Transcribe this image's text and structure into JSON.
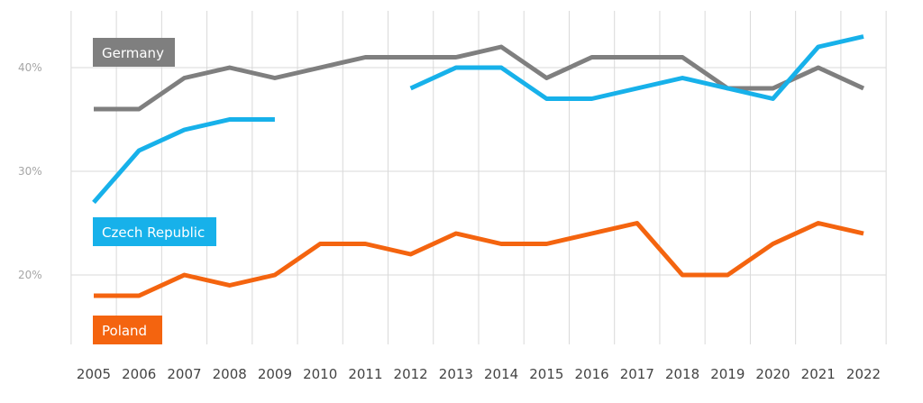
{
  "chart_data": {
    "type": "line",
    "categories": [
      "2005",
      "2006",
      "2007",
      "2008",
      "2009",
      "2010",
      "2011",
      "2012",
      "2013",
      "2014",
      "2015",
      "2016",
      "2017",
      "2018",
      "2019",
      "2020",
      "2021",
      "2022"
    ],
    "yticks": [
      {
        "value": 20,
        "label": "20%"
      },
      {
        "value": 30,
        "label": "30%"
      },
      {
        "value": 40,
        "label": "40%"
      }
    ],
    "ylim": [
      13,
      45
    ],
    "grid": true,
    "series": [
      {
        "name": "Germany",
        "color": "#7f7f7f",
        "values": [
          36,
          36,
          39,
          40,
          39,
          40,
          41,
          41,
          41,
          42,
          39,
          41,
          41,
          41,
          38,
          38,
          40,
          38
        ]
      },
      {
        "name": "Czech Republic",
        "color": "#17b1ea",
        "values": [
          27,
          32,
          34,
          35,
          35,
          null,
          null,
          38,
          40,
          40,
          37,
          37,
          38,
          39,
          38,
          37,
          42,
          43
        ]
      },
      {
        "name": "Poland",
        "color": "#f4640f",
        "values": [
          18,
          18,
          20,
          19,
          20,
          23,
          23,
          22,
          24,
          23,
          23,
          24,
          25,
          20,
          20,
          23,
          25,
          24
        ]
      }
    ]
  }
}
